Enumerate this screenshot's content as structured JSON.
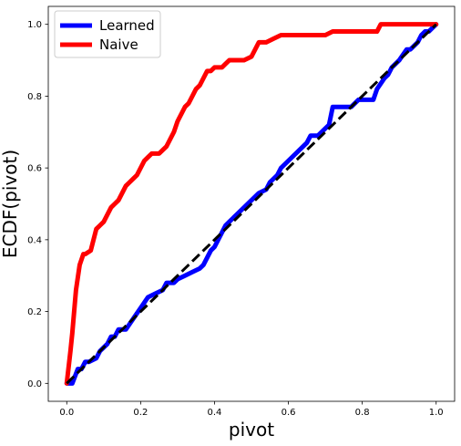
{
  "chart_data": {
    "type": "line",
    "title": "",
    "xlabel": "pivot",
    "ylabel": "ECDF(pivot)",
    "xlim": [
      -0.05,
      1.05
    ],
    "ylim": [
      -0.05,
      1.05
    ],
    "xticks": [
      "0.0",
      "0.2",
      "0.4",
      "0.6",
      "0.8",
      "1.0"
    ],
    "yticks": [
      "0.0",
      "0.2",
      "0.4",
      "0.6",
      "0.8",
      "1.0"
    ],
    "grid": false,
    "legend_position": "top-left",
    "series": [
      {
        "name": "Learned",
        "color": "#0000ff",
        "style": "solid",
        "x": [
          0.0,
          0.015,
          0.03,
          0.04,
          0.05,
          0.06,
          0.08,
          0.09,
          0.1,
          0.11,
          0.12,
          0.13,
          0.14,
          0.15,
          0.16,
          0.18,
          0.2,
          0.22,
          0.24,
          0.26,
          0.27,
          0.29,
          0.3,
          0.32,
          0.34,
          0.36,
          0.37,
          0.38,
          0.39,
          0.4,
          0.41,
          0.42,
          0.43,
          0.44,
          0.46,
          0.48,
          0.5,
          0.52,
          0.54,
          0.55,
          0.57,
          0.58,
          0.6,
          0.62,
          0.63,
          0.65,
          0.66,
          0.68,
          0.7,
          0.71,
          0.72,
          0.75,
          0.77,
          0.79,
          0.8,
          0.83,
          0.84,
          0.86,
          0.87,
          0.88,
          0.9,
          0.92,
          0.93,
          0.95,
          0.96,
          0.97,
          0.98,
          0.99,
          1.0
        ],
        "y": [
          0.0,
          0.0,
          0.04,
          0.04,
          0.06,
          0.06,
          0.07,
          0.09,
          0.1,
          0.11,
          0.13,
          0.13,
          0.15,
          0.15,
          0.15,
          0.18,
          0.21,
          0.24,
          0.25,
          0.26,
          0.28,
          0.28,
          0.29,
          0.3,
          0.31,
          0.32,
          0.33,
          0.35,
          0.37,
          0.38,
          0.4,
          0.42,
          0.44,
          0.45,
          0.47,
          0.49,
          0.51,
          0.53,
          0.54,
          0.56,
          0.58,
          0.6,
          0.62,
          0.64,
          0.65,
          0.67,
          0.69,
          0.69,
          0.71,
          0.72,
          0.77,
          0.77,
          0.77,
          0.79,
          0.79,
          0.79,
          0.82,
          0.85,
          0.86,
          0.88,
          0.9,
          0.93,
          0.93,
          0.95,
          0.97,
          0.98,
          0.98,
          0.99,
          1.0
        ]
      },
      {
        "name": "Naive",
        "color": "#ff0000",
        "style": "solid",
        "x": [
          0.0,
          0.01,
          0.015,
          0.025,
          0.035,
          0.045,
          0.05,
          0.065,
          0.07,
          0.08,
          0.09,
          0.1,
          0.11,
          0.12,
          0.13,
          0.14,
          0.15,
          0.16,
          0.17,
          0.18,
          0.19,
          0.2,
          0.21,
          0.22,
          0.23,
          0.24,
          0.25,
          0.26,
          0.27,
          0.28,
          0.29,
          0.3,
          0.31,
          0.32,
          0.33,
          0.34,
          0.35,
          0.36,
          0.37,
          0.38,
          0.39,
          0.4,
          0.41,
          0.42,
          0.43,
          0.44,
          0.46,
          0.48,
          0.5,
          0.51,
          0.52,
          0.54,
          0.56,
          0.58,
          0.6,
          0.65,
          0.7,
          0.72,
          0.74,
          0.76,
          0.78,
          0.8,
          0.84,
          0.85,
          0.9,
          1.0
        ],
        "y": [
          0.0,
          0.09,
          0.14,
          0.26,
          0.33,
          0.36,
          0.36,
          0.37,
          0.39,
          0.43,
          0.44,
          0.45,
          0.47,
          0.49,
          0.5,
          0.51,
          0.53,
          0.55,
          0.56,
          0.57,
          0.58,
          0.6,
          0.62,
          0.63,
          0.64,
          0.64,
          0.64,
          0.65,
          0.66,
          0.68,
          0.7,
          0.73,
          0.75,
          0.77,
          0.78,
          0.8,
          0.82,
          0.83,
          0.85,
          0.87,
          0.87,
          0.88,
          0.88,
          0.88,
          0.89,
          0.9,
          0.9,
          0.9,
          0.91,
          0.93,
          0.95,
          0.95,
          0.96,
          0.97,
          0.97,
          0.97,
          0.97,
          0.98,
          0.98,
          0.98,
          0.98,
          0.98,
          0.98,
          1.0,
          1.0,
          1.0
        ]
      },
      {
        "name": "",
        "color": "#000000",
        "style": "dashed",
        "x": [
          0.0,
          1.0
        ],
        "y": [
          0.0,
          1.0
        ]
      }
    ]
  }
}
